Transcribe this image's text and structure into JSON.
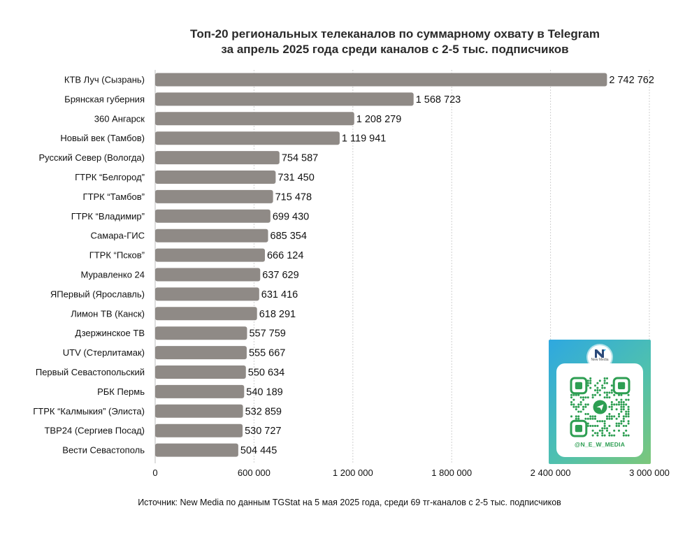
{
  "chart_data": {
    "type": "bar",
    "orientation": "horizontal",
    "title": "Топ-20 региональных телеканалов по суммарному охвату в Telegram",
    "subtitle": "за апрель 2025 года среди каналов с 2-5 тыс. подписчиков",
    "categories": [
      "КТВ Луч (Сызрань)",
      "Брянская губерния",
      "360 Ангарск",
      "Новый век (Тамбов)",
      "Русский Север (Вологда)",
      "ГТРК “Белгород”",
      "ГТРК “Тамбов”",
      "ГТРК “Владимир”",
      "Самара-ГИС",
      "ГТРК “Псков”",
      "Муравленко 24",
      "ЯПервый (Ярославль)",
      "Лимон ТВ (Канск)",
      "Дзержинское ТВ",
      "UTV (Стерлитамак)",
      "Первый Севастопольский",
      "РБК Пермь",
      "ГТРК “Калмыкия” (Элиста)",
      "ТВР24 (Сергиев Посад)",
      "Вести Севастополь"
    ],
    "values": [
      2742762,
      1568723,
      1208279,
      1119941,
      754587,
      731450,
      715478,
      699430,
      685354,
      666124,
      637629,
      631416,
      618291,
      557759,
      555667,
      550634,
      540189,
      532859,
      530727,
      504445
    ],
    "value_labels": [
      "2 742 762",
      "1 568 723",
      "1 208 279",
      "1 119 941",
      "754 587",
      "731 450",
      "715 478",
      "699 430",
      "685 354",
      "666 124",
      "637 629",
      "631 416",
      "618 291",
      "557 759",
      "555 667",
      "550 634",
      "540 189",
      "532 859",
      "530 727",
      "504 445"
    ],
    "xlim": [
      0,
      3000000
    ],
    "x_ticks": [
      0,
      600000,
      1200000,
      1800000,
      2400000,
      3000000
    ],
    "x_tick_labels": [
      "0",
      "600 000",
      "1 200 000",
      "1 800 000",
      "2 400 000",
      "3 000 000"
    ],
    "grid": "vertical",
    "bar_color": "#8f8a86",
    "grid_color": "#cfcfcf"
  },
  "source": "Источник: New Media по данным TGStat на 5 мая 2025 года, среди 69 тг-каналов с 2-5 тыс. подписчиков",
  "qr_card": {
    "logo_icon": "new-media-logo",
    "logo_text": "New Media",
    "handle": "@N_E_W_MEDIA"
  }
}
